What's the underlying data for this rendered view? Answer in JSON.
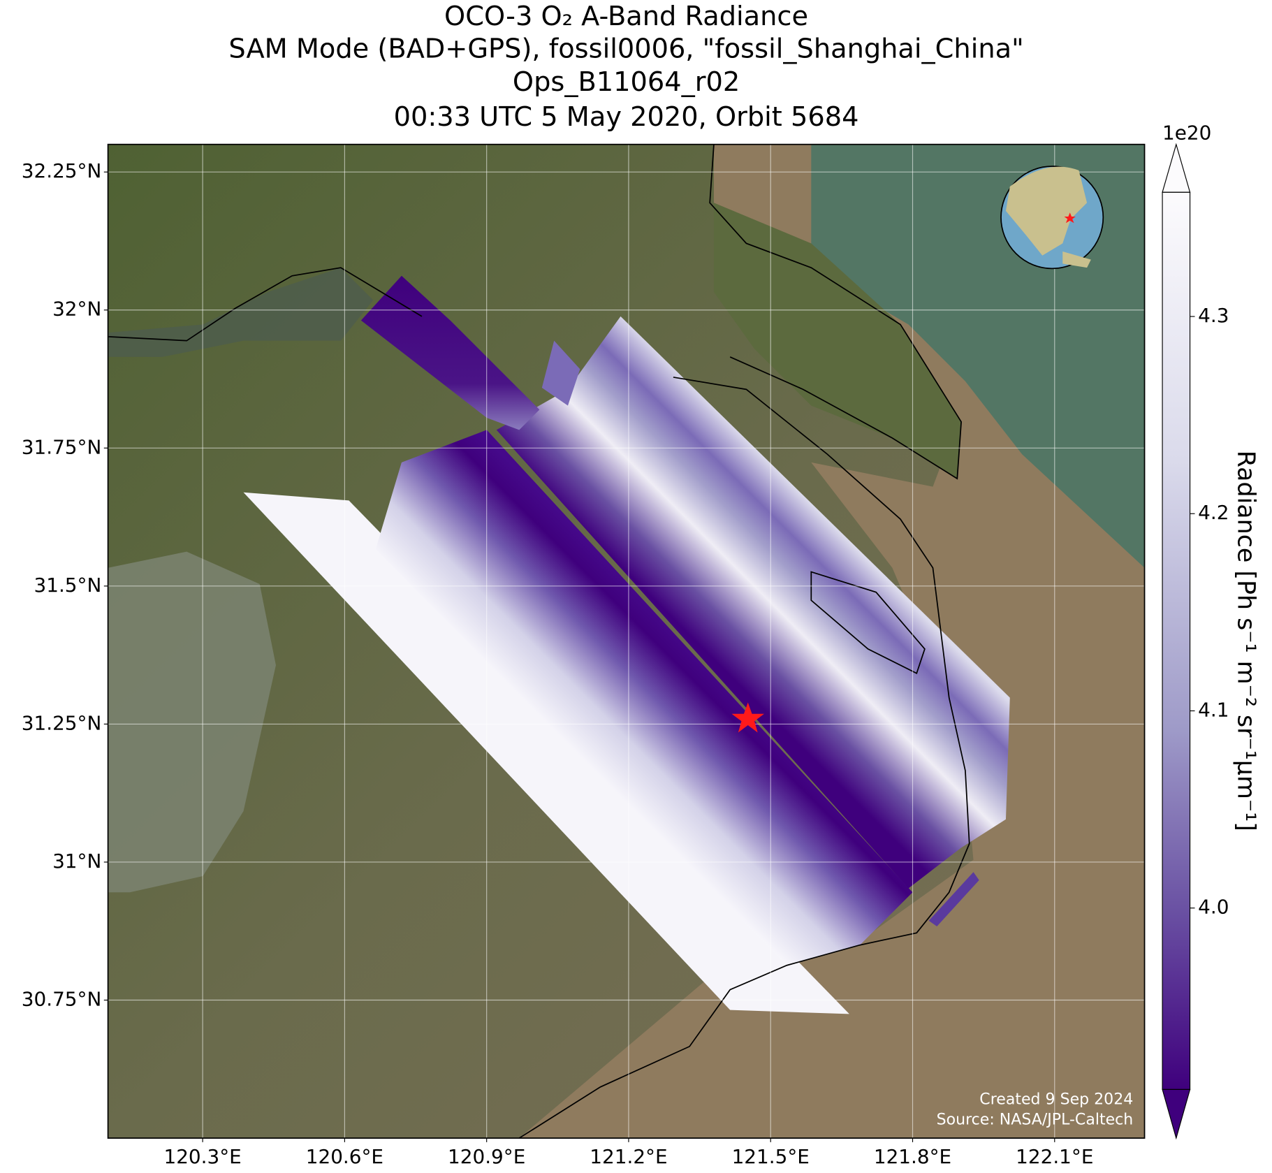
{
  "map": {
    "title": [
      "OCO-3 O₂ A-Band Radiance",
      "SAM Mode (BAD+GPS), fossil0006, \"fossil_Shanghai_China\"",
      "Ops_B11064_r02",
      "00:33 UTC 5 May 2020, Orbit 5684"
    ],
    "xlim": [
      120.1,
      122.29
    ],
    "ylim": [
      30.5,
      32.3
    ],
    "xticks": [
      {
        "value": 120.3,
        "label": "120.3°E"
      },
      {
        "value": 120.6,
        "label": "120.6°E"
      },
      {
        "value": 120.9,
        "label": "120.9°E"
      },
      {
        "value": 121.2,
        "label": "121.2°E"
      },
      {
        "value": 121.5,
        "label": "121.5°E"
      },
      {
        "value": 121.8,
        "label": "121.8°E"
      },
      {
        "value": 122.1,
        "label": "122.1°E"
      }
    ],
    "yticks": [
      {
        "value": 30.75,
        "label": "30.75°N"
      },
      {
        "value": 31,
        "label": "31°N"
      },
      {
        "value": 31.25,
        "label": "31.25°N"
      },
      {
        "value": 31.5,
        "label": "31.5°N"
      },
      {
        "value": 31.75,
        "label": "31.75°N"
      },
      {
        "value": 32,
        "label": "32°N"
      },
      {
        "value": 32.25,
        "label": "32.25°N"
      }
    ],
    "grid": true,
    "credits": [
      "Created 9 Sep 2024",
      "Source: NASA/JPL-Caltech"
    ]
  },
  "colorbar": {
    "label": "Radiance [Ph s⁻¹ m⁻² sr⁻¹μm⁻¹]",
    "offset_label": "1e20",
    "lim": [
      3.908,
      4.363
    ],
    "ticks": [
      {
        "value": 4,
        "label": "4.0"
      },
      4.1,
      4.2,
      4.3
    ]
  }
}
